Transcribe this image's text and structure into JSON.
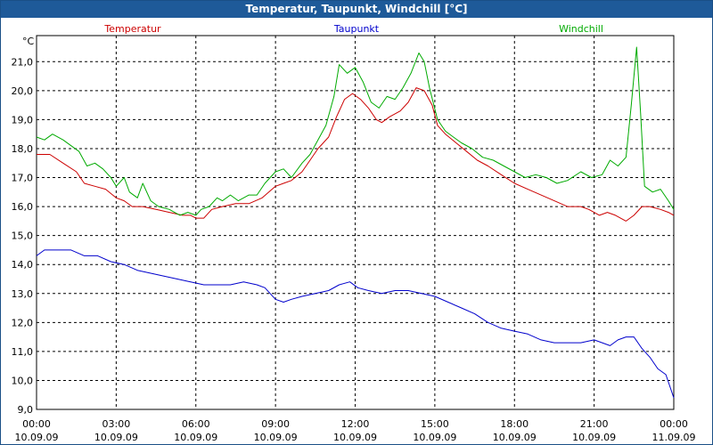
{
  "window": {
    "title": "Temperatur, Taupunkt, Windchill [°C]"
  },
  "chart_data": {
    "type": "line",
    "title": "Temperatur, Taupunkt, Windchill [°C]",
    "ylabel": "°C",
    "xlabel": "",
    "ylim": [
      9.0,
      21.9
    ],
    "xlim": [
      0,
      24
    ],
    "grid": true,
    "legend_position": "top",
    "y_ticks": [
      "9,0",
      "10,0",
      "11,0",
      "12,0",
      "13,0",
      "14,0",
      "15,0",
      "16,0",
      "17,0",
      "18,0",
      "19,0",
      "20,0",
      "21,0"
    ],
    "x_ticks": [
      {
        "time": "00:00",
        "date": "10.09.09"
      },
      {
        "time": "03:00",
        "date": "10.09.09"
      },
      {
        "time": "06:00",
        "date": "10.09.09"
      },
      {
        "time": "09:00",
        "date": "10.09.09"
      },
      {
        "time": "12:00",
        "date": "10.09.09"
      },
      {
        "time": "15:00",
        "date": "10.09.09"
      },
      {
        "time": "18:00",
        "date": "10.09.09"
      },
      {
        "time": "21:00",
        "date": "10.09.09"
      },
      {
        "time": "00:00",
        "date": "11.09.09"
      }
    ],
    "series": [
      {
        "name": "Temperatur",
        "color": "#cc0000",
        "points": [
          [
            0,
            17.8
          ],
          [
            0.5,
            17.8
          ],
          [
            1,
            17.5
          ],
          [
            1.5,
            17.2
          ],
          [
            1.8,
            16.8
          ],
          [
            2.2,
            16.7
          ],
          [
            2.6,
            16.6
          ],
          [
            3,
            16.3
          ],
          [
            3.3,
            16.2
          ],
          [
            3.6,
            16.0
          ],
          [
            4,
            16.0
          ],
          [
            4.5,
            15.9
          ],
          [
            5,
            15.8
          ],
          [
            5.5,
            15.7
          ],
          [
            5.8,
            15.7
          ],
          [
            6,
            15.6
          ],
          [
            6.3,
            15.6
          ],
          [
            6.6,
            15.9
          ],
          [
            7,
            16.0
          ],
          [
            7.5,
            16.1
          ],
          [
            8,
            16.1
          ],
          [
            8.5,
            16.3
          ],
          [
            9,
            16.7
          ],
          [
            9.3,
            16.8
          ],
          [
            9.6,
            16.9
          ],
          [
            10,
            17.2
          ],
          [
            10.3,
            17.6
          ],
          [
            10.6,
            18.0
          ],
          [
            11,
            18.4
          ],
          [
            11.3,
            19.1
          ],
          [
            11.6,
            19.7
          ],
          [
            11.9,
            19.9
          ],
          [
            12.2,
            19.7
          ],
          [
            12.5,
            19.4
          ],
          [
            12.8,
            19.0
          ],
          [
            13,
            18.9
          ],
          [
            13.3,
            19.1
          ],
          [
            13.7,
            19.3
          ],
          [
            14,
            19.6
          ],
          [
            14.3,
            20.1
          ],
          [
            14.6,
            20.0
          ],
          [
            14.9,
            19.5
          ],
          [
            15.1,
            18.8
          ],
          [
            15.4,
            18.5
          ],
          [
            15.8,
            18.2
          ],
          [
            16.2,
            17.9
          ],
          [
            16.6,
            17.6
          ],
          [
            17,
            17.4
          ],
          [
            17.5,
            17.1
          ],
          [
            18,
            16.8
          ],
          [
            18.5,
            16.6
          ],
          [
            19,
            16.4
          ],
          [
            19.5,
            16.2
          ],
          [
            20,
            16.0
          ],
          [
            20.5,
            16.0
          ],
          [
            20.8,
            15.9
          ],
          [
            21.2,
            15.7
          ],
          [
            21.5,
            15.8
          ],
          [
            21.8,
            15.7
          ],
          [
            22.2,
            15.5
          ],
          [
            22.5,
            15.7
          ],
          [
            22.8,
            16.0
          ],
          [
            23.1,
            16.0
          ],
          [
            23.5,
            15.9
          ],
          [
            23.8,
            15.8
          ],
          [
            24,
            15.7
          ]
        ]
      },
      {
        "name": "Taupunkt",
        "color": "#0000cc",
        "points": [
          [
            0,
            14.3
          ],
          [
            0.3,
            14.5
          ],
          [
            0.8,
            14.5
          ],
          [
            1.3,
            14.5
          ],
          [
            1.8,
            14.3
          ],
          [
            2.3,
            14.3
          ],
          [
            2.8,
            14.1
          ],
          [
            3.3,
            14.0
          ],
          [
            3.8,
            13.8
          ],
          [
            4.3,
            13.7
          ],
          [
            4.8,
            13.6
          ],
          [
            5.3,
            13.5
          ],
          [
            5.8,
            13.4
          ],
          [
            6.3,
            13.3
          ],
          [
            6.8,
            13.3
          ],
          [
            7.3,
            13.3
          ],
          [
            7.8,
            13.4
          ],
          [
            8.3,
            13.3
          ],
          [
            8.6,
            13.2
          ],
          [
            9,
            12.8
          ],
          [
            9.3,
            12.7
          ],
          [
            9.6,
            12.8
          ],
          [
            10,
            12.9
          ],
          [
            10.5,
            13.0
          ],
          [
            11,
            13.1
          ],
          [
            11.4,
            13.3
          ],
          [
            11.8,
            13.4
          ],
          [
            12.1,
            13.2
          ],
          [
            12.5,
            13.1
          ],
          [
            13,
            13.0
          ],
          [
            13.5,
            13.1
          ],
          [
            14,
            13.1
          ],
          [
            14.5,
            13.0
          ],
          [
            15,
            12.9
          ],
          [
            15.5,
            12.7
          ],
          [
            16,
            12.5
          ],
          [
            16.5,
            12.3
          ],
          [
            17,
            12.0
          ],
          [
            17.5,
            11.8
          ],
          [
            18,
            11.7
          ],
          [
            18.5,
            11.6
          ],
          [
            19,
            11.4
          ],
          [
            19.5,
            11.3
          ],
          [
            20,
            11.3
          ],
          [
            20.5,
            11.3
          ],
          [
            21,
            11.4
          ],
          [
            21.3,
            11.3
          ],
          [
            21.6,
            11.2
          ],
          [
            21.9,
            11.4
          ],
          [
            22.2,
            11.5
          ],
          [
            22.5,
            11.5
          ],
          [
            22.8,
            11.1
          ],
          [
            23.1,
            10.8
          ],
          [
            23.4,
            10.4
          ],
          [
            23.7,
            10.2
          ],
          [
            24,
            9.4
          ]
        ]
      },
      {
        "name": "Windchill",
        "color": "#00aa00",
        "points": [
          [
            0,
            18.4
          ],
          [
            0.3,
            18.3
          ],
          [
            0.6,
            18.5
          ],
          [
            1,
            18.3
          ],
          [
            1.3,
            18.1
          ],
          [
            1.6,
            17.9
          ],
          [
            1.9,
            17.4
          ],
          [
            2.2,
            17.5
          ],
          [
            2.5,
            17.3
          ],
          [
            2.8,
            17.0
          ],
          [
            3,
            16.7
          ],
          [
            3.3,
            17.0
          ],
          [
            3.5,
            16.5
          ],
          [
            3.8,
            16.3
          ],
          [
            4,
            16.8
          ],
          [
            4.3,
            16.2
          ],
          [
            4.6,
            16.0
          ],
          [
            5,
            15.9
          ],
          [
            5.4,
            15.7
          ],
          [
            5.7,
            15.8
          ],
          [
            6,
            15.7
          ],
          [
            6.2,
            15.9
          ],
          [
            6.5,
            16.0
          ],
          [
            6.8,
            16.3
          ],
          [
            7,
            16.2
          ],
          [
            7.3,
            16.4
          ],
          [
            7.6,
            16.2
          ],
          [
            8,
            16.4
          ],
          [
            8.3,
            16.4
          ],
          [
            8.6,
            16.8
          ],
          [
            9,
            17.2
          ],
          [
            9.3,
            17.3
          ],
          [
            9.6,
            17.0
          ],
          [
            10,
            17.5
          ],
          [
            10.3,
            17.8
          ],
          [
            10.6,
            18.3
          ],
          [
            10.9,
            18.8
          ],
          [
            11.2,
            19.8
          ],
          [
            11.4,
            20.9
          ],
          [
            11.7,
            20.6
          ],
          [
            12,
            20.8
          ],
          [
            12.3,
            20.3
          ],
          [
            12.6,
            19.6
          ],
          [
            12.9,
            19.4
          ],
          [
            13.2,
            19.8
          ],
          [
            13.5,
            19.7
          ],
          [
            13.8,
            20.1
          ],
          [
            14.1,
            20.6
          ],
          [
            14.4,
            21.3
          ],
          [
            14.6,
            21.0
          ],
          [
            14.8,
            20.1
          ],
          [
            15.1,
            19.0
          ],
          [
            15.4,
            18.6
          ],
          [
            15.7,
            18.4
          ],
          [
            16,
            18.2
          ],
          [
            16.4,
            18.0
          ],
          [
            16.8,
            17.7
          ],
          [
            17.2,
            17.6
          ],
          [
            17.6,
            17.4
          ],
          [
            18,
            17.2
          ],
          [
            18.4,
            17.0
          ],
          [
            18.8,
            17.1
          ],
          [
            19.2,
            17.0
          ],
          [
            19.6,
            16.8
          ],
          [
            20,
            16.9
          ],
          [
            20.5,
            17.2
          ],
          [
            20.9,
            17.0
          ],
          [
            21.3,
            17.1
          ],
          [
            21.6,
            17.6
          ],
          [
            21.9,
            17.4
          ],
          [
            22.2,
            17.7
          ],
          [
            22.4,
            19.5
          ],
          [
            22.6,
            21.5
          ],
          [
            22.75,
            19.2
          ],
          [
            22.9,
            16.7
          ],
          [
            23.2,
            16.5
          ],
          [
            23.5,
            16.6
          ],
          [
            23.8,
            16.2
          ],
          [
            24,
            15.9
          ]
        ]
      }
    ]
  }
}
